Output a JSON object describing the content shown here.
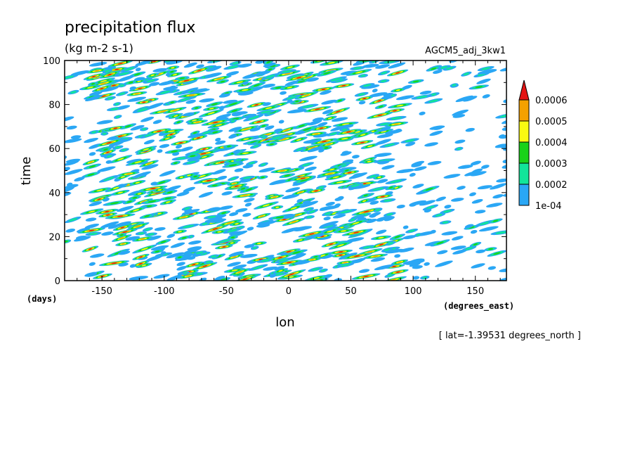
{
  "chart_data": {
    "type": "heatmap",
    "title": "precipitation flux",
    "subtitle": "(kg m-2 s-1)",
    "run_label": "AGCM5_adj_3kw1",
    "xlabel": "lon",
    "x_units": "(degrees_east)",
    "ylabel": "time",
    "y_units": "(days)",
    "footnote": "[ lat=-1.39531 degrees_north ]",
    "xlim": [
      -180,
      175
    ],
    "ylim": [
      0,
      100
    ],
    "x_ticks": [
      -150,
      -100,
      -50,
      0,
      50,
      100,
      150
    ],
    "x_tick_labels": [
      "-150",
      "-100",
      "-50",
      "0",
      "50",
      "100",
      "150"
    ],
    "y_ticks": [
      0,
      20,
      40,
      60,
      80,
      100
    ],
    "y_tick_labels": [
      "0",
      "20",
      "40",
      "60",
      "80",
      "100"
    ],
    "grid": false,
    "legend_position": "right",
    "colorbar": {
      "levels": [
        0.0001,
        0.0002,
        0.0003,
        0.0004,
        0.0005,
        0.0006
      ],
      "labels": [
        "1e-04",
        "0.0002",
        "0.0003",
        "0.0004",
        "0.0005",
        "0.0006"
      ],
      "colors": [
        "#2aa7f5",
        "#12e59a",
        "#19d219",
        "#fafa11",
        "#f5a100",
        "#e41414"
      ],
      "extend": "max"
    }
  }
}
